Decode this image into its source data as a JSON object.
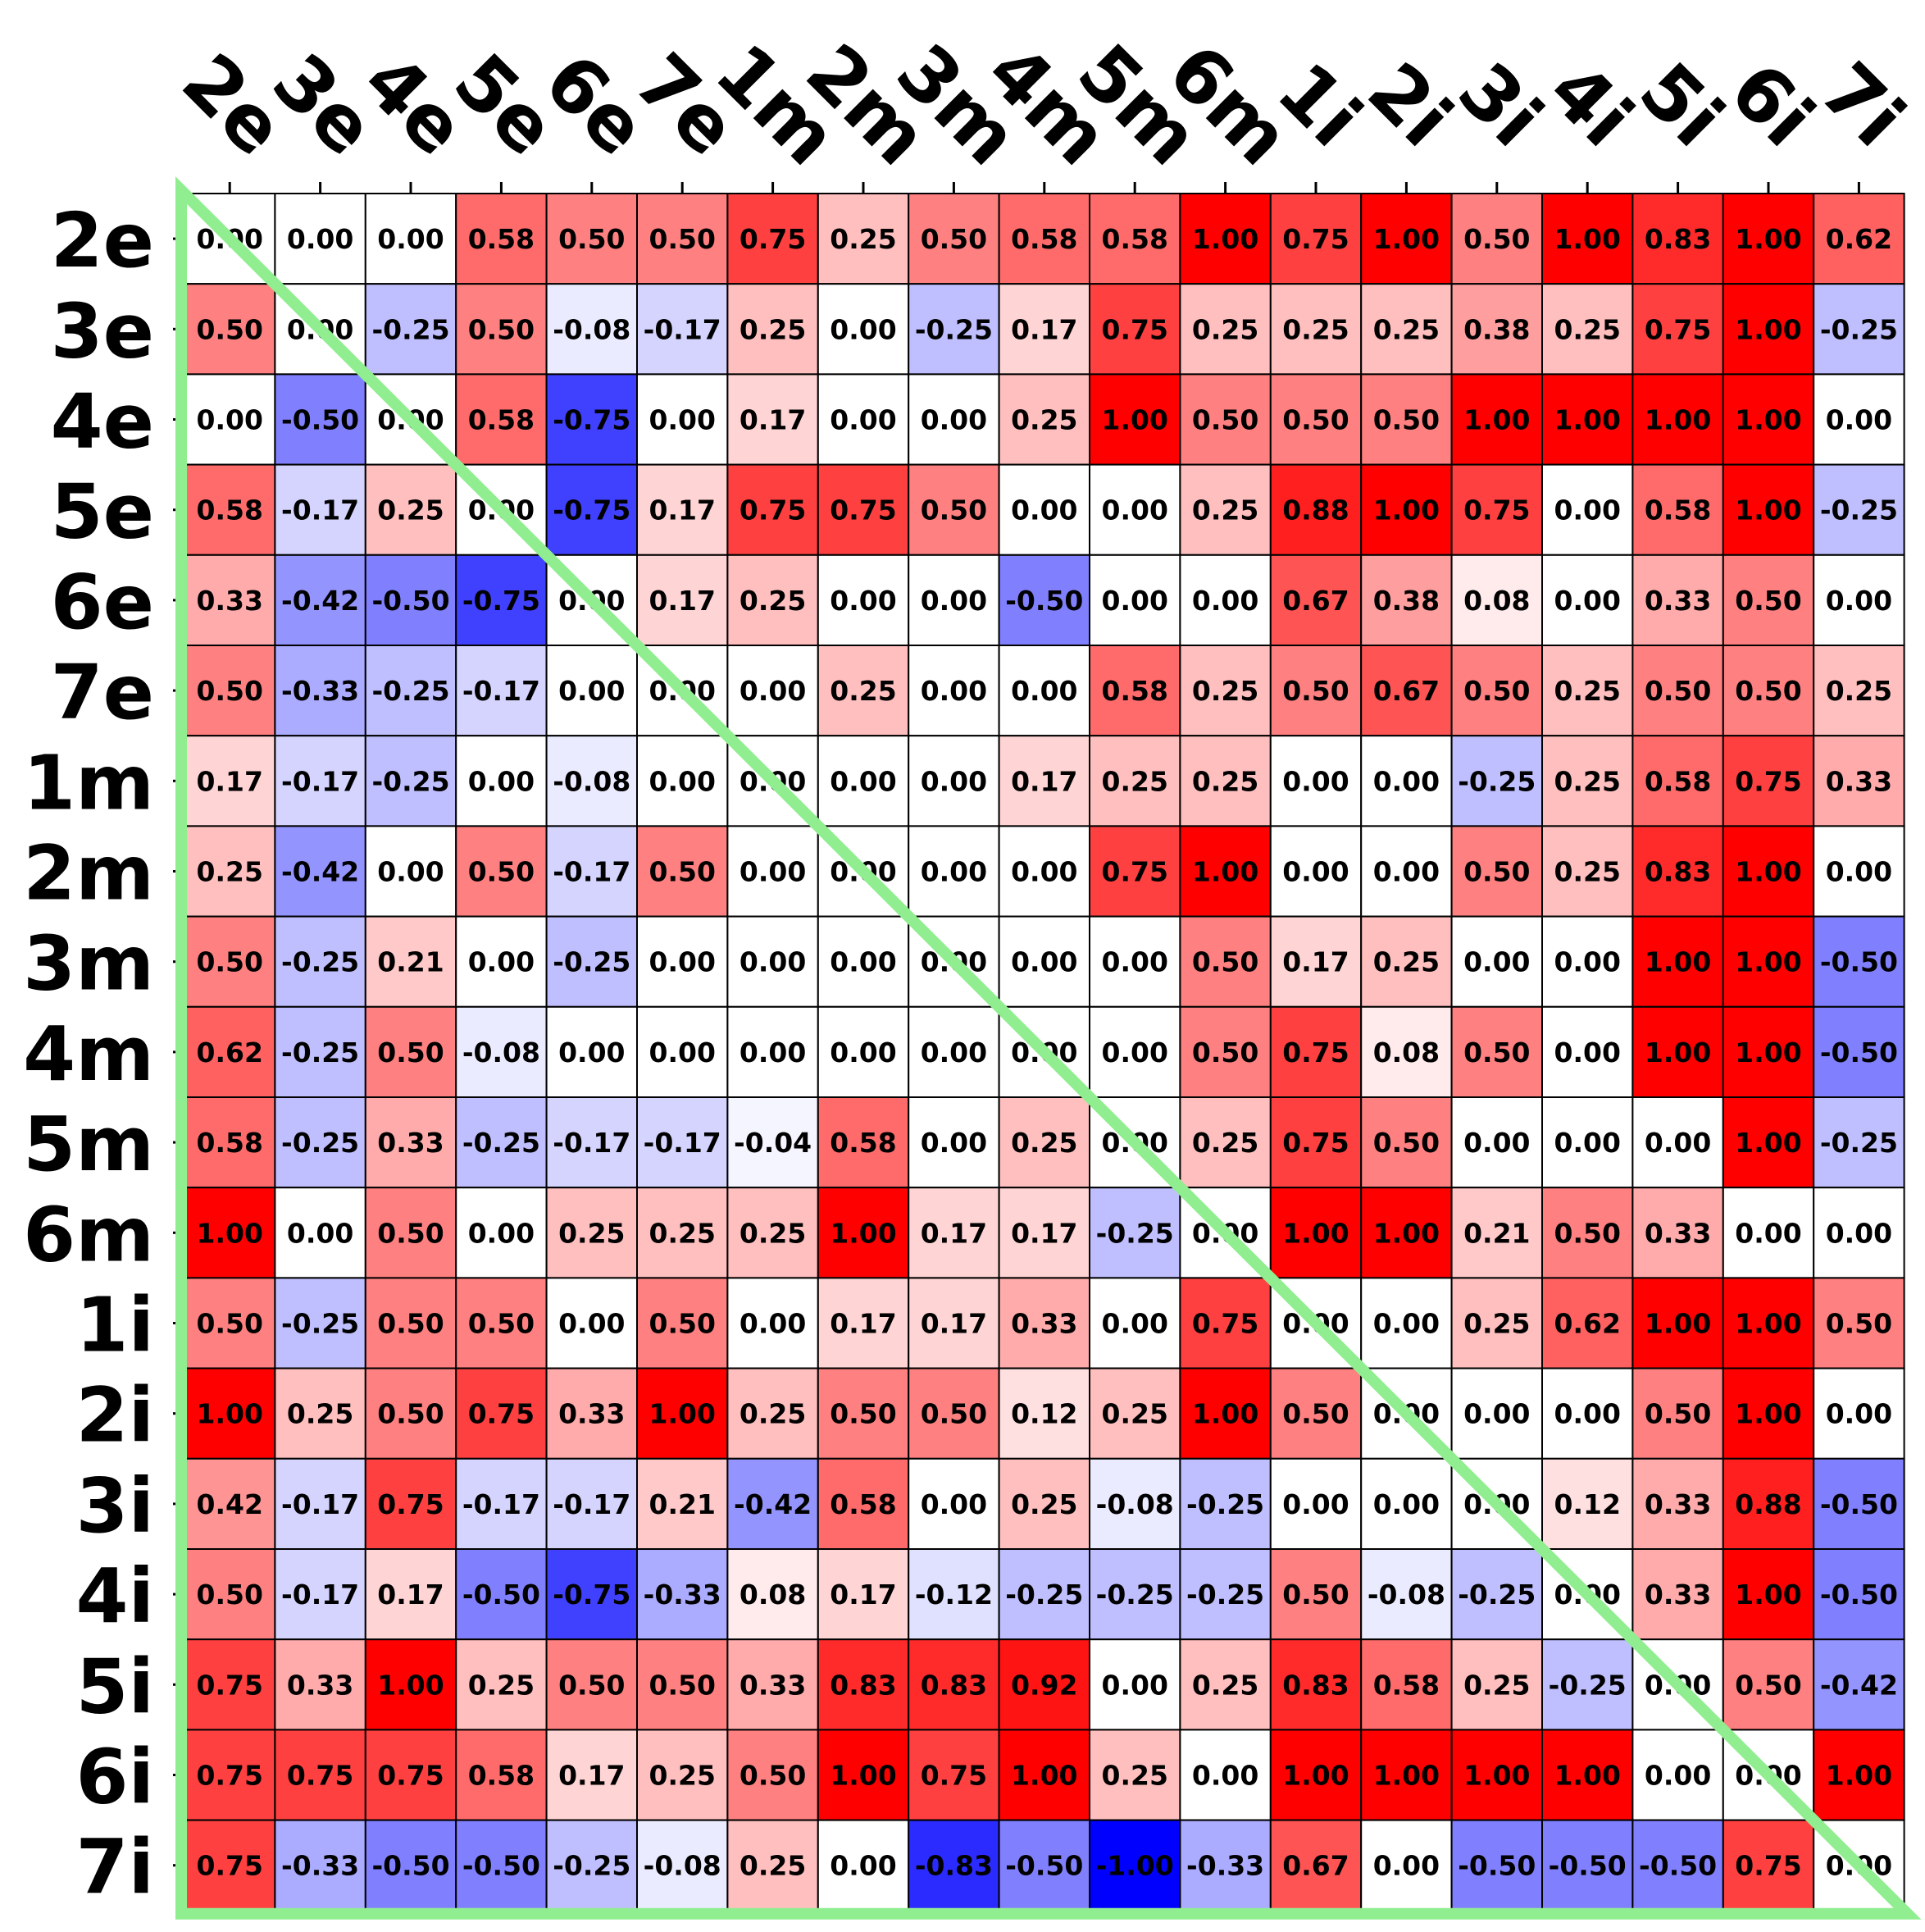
{
  "chart_data": {
    "type": "heatmap",
    "x_labels": [
      "2e",
      "3e",
      "4e",
      "5e",
      "6e",
      "7e",
      "1m",
      "2m",
      "3m",
      "4m",
      "5m",
      "6m",
      "1i",
      "2i",
      "3i",
      "4i",
      "5i",
      "6i",
      "7i"
    ],
    "y_labels": [
      "2e",
      "3e",
      "4e",
      "5e",
      "6e",
      "7e",
      "1m",
      "2m",
      "3m",
      "4m",
      "5m",
      "6m",
      "1i",
      "2i",
      "3i",
      "4i",
      "5i",
      "6i",
      "7i"
    ],
    "values": [
      [
        0.0,
        0.0,
        0.0,
        0.58,
        0.5,
        0.5,
        0.75,
        0.25,
        0.5,
        0.58,
        0.58,
        1.0,
        0.75,
        1.0,
        0.5,
        1.0,
        0.83,
        1.0,
        0.62
      ],
      [
        0.5,
        0.0,
        -0.25,
        0.5,
        -0.08,
        -0.17,
        0.25,
        0.0,
        -0.25,
        0.17,
        0.75,
        0.25,
        0.25,
        0.25,
        0.38,
        0.25,
        0.75,
        1.0,
        -0.25
      ],
      [
        0.0,
        -0.5,
        0.0,
        0.58,
        -0.75,
        0.0,
        0.17,
        0.0,
        0.0,
        0.25,
        1.0,
        0.5,
        0.5,
        0.5,
        1.0,
        1.0,
        1.0,
        1.0,
        0.0
      ],
      [
        0.58,
        -0.17,
        0.25,
        0.0,
        -0.75,
        0.17,
        0.75,
        0.75,
        0.5,
        0.0,
        0.0,
        0.25,
        0.88,
        1.0,
        0.75,
        0.0,
        0.58,
        1.0,
        -0.25
      ],
      [
        0.33,
        -0.42,
        -0.5,
        -0.75,
        0.0,
        0.17,
        0.25,
        0.0,
        0.0,
        -0.5,
        0.0,
        0.0,
        0.67,
        0.38,
        0.08,
        0.0,
        0.33,
        0.5,
        0.0
      ],
      [
        0.5,
        -0.33,
        -0.25,
        -0.17,
        0.0,
        0.0,
        0.0,
        0.25,
        0.0,
        0.0,
        0.58,
        0.25,
        0.5,
        0.67,
        0.5,
        0.25,
        0.5,
        0.5,
        0.25
      ],
      [
        0.17,
        -0.17,
        -0.25,
        0.0,
        -0.08,
        0.0,
        0.0,
        0.0,
        0.0,
        0.17,
        0.25,
        0.25,
        0.0,
        0.0,
        -0.25,
        0.25,
        0.58,
        0.75,
        0.33
      ],
      [
        0.25,
        -0.42,
        0.0,
        0.5,
        -0.17,
        0.5,
        0.0,
        0.0,
        0.0,
        0.0,
        0.75,
        1.0,
        0.0,
        0.0,
        0.5,
        0.25,
        0.83,
        1.0,
        0.0
      ],
      [
        0.5,
        -0.25,
        0.21,
        0.0,
        -0.25,
        0.0,
        0.0,
        0.0,
        0.0,
        0.0,
        0.0,
        0.5,
        0.17,
        0.25,
        0.0,
        0.0,
        1.0,
        1.0,
        -0.5
      ],
      [
        0.62,
        -0.25,
        0.5,
        -0.08,
        0.0,
        0.0,
        0.0,
        0.0,
        0.0,
        0.0,
        0.0,
        0.5,
        0.75,
        0.08,
        0.5,
        0.0,
        1.0,
        1.0,
        -0.5
      ],
      [
        0.58,
        -0.25,
        0.33,
        -0.25,
        -0.17,
        -0.17,
        -0.04,
        0.58,
        0.0,
        0.25,
        0.0,
        0.25,
        0.75,
        0.5,
        0.0,
        0.0,
        0.0,
        1.0,
        -0.25
      ],
      [
        1.0,
        0.0,
        0.5,
        0.0,
        0.25,
        0.25,
        0.25,
        1.0,
        0.17,
        0.17,
        -0.25,
        0.0,
        1.0,
        1.0,
        0.21,
        0.5,
        0.33,
        0.0,
        0.0
      ],
      [
        0.5,
        -0.25,
        0.5,
        0.5,
        0.0,
        0.5,
        0.0,
        0.17,
        0.17,
        0.33,
        0.0,
        0.75,
        0.0,
        0.0,
        0.25,
        0.62,
        1.0,
        1.0,
        0.5
      ],
      [
        1.0,
        0.25,
        0.5,
        0.75,
        0.33,
        1.0,
        0.25,
        0.5,
        0.5,
        0.12,
        0.25,
        1.0,
        0.5,
        0.0,
        0.0,
        0.0,
        0.5,
        1.0,
        0.0
      ],
      [
        0.42,
        -0.17,
        0.75,
        -0.17,
        -0.17,
        0.21,
        -0.42,
        0.58,
        0.0,
        0.25,
        -0.08,
        -0.25,
        0.0,
        0.0,
        0.0,
        0.12,
        0.33,
        0.88,
        -0.5
      ],
      [
        0.5,
        -0.17,
        0.17,
        -0.5,
        -0.75,
        -0.33,
        0.08,
        0.17,
        -0.12,
        -0.25,
        -0.25,
        -0.25,
        0.5,
        -0.08,
        -0.25,
        0.0,
        0.33,
        1.0,
        -0.5
      ],
      [
        0.75,
        0.33,
        1.0,
        0.25,
        0.5,
        0.5,
        0.33,
        0.83,
        0.83,
        0.92,
        0.0,
        0.25,
        0.83,
        0.58,
        0.25,
        -0.25,
        0.0,
        0.5,
        -0.42
      ],
      [
        0.75,
        0.75,
        0.75,
        0.58,
        0.17,
        0.25,
        0.5,
        1.0,
        0.75,
        1.0,
        0.25,
        0.0,
        1.0,
        1.0,
        1.0,
        1.0,
        0.0,
        0.0,
        1.0
      ],
      [
        0.75,
        -0.33,
        -0.5,
        -0.5,
        -0.25,
        -0.08,
        0.25,
        0.0,
        -0.83,
        -0.5,
        -1.0,
        -0.33,
        0.67,
        0.0,
        -0.5,
        -0.5,
        -0.5,
        0.75,
        0.0
      ]
    ],
    "value_range": [
      -1.0,
      1.0
    ],
    "colormap": "bwr",
    "colors": {
      "low": "#0000ff",
      "mid": "#ffffff",
      "high": "#ff0000",
      "overlay": "#90ee90",
      "grid": "#000000"
    },
    "x_ticks_position": "top",
    "x_tick_rotation": -45,
    "diagonal_overlay": true
  }
}
